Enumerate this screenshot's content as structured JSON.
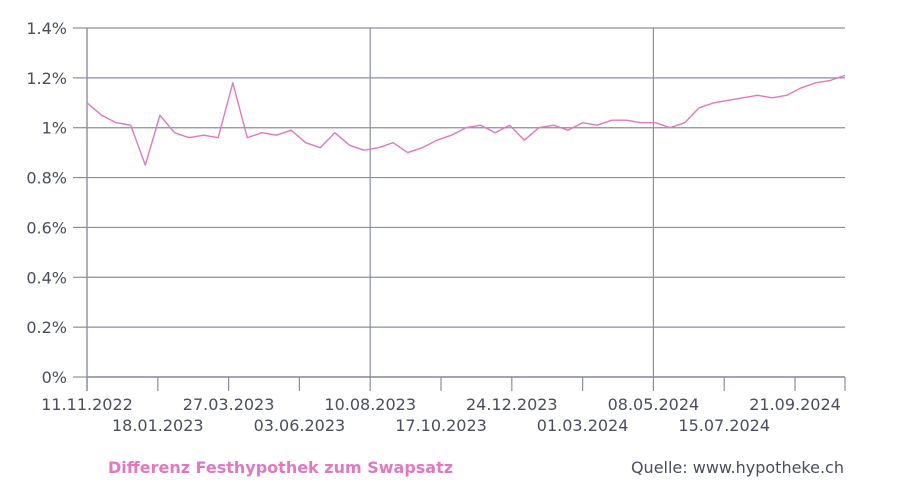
{
  "chart_data": {
    "type": "line",
    "ylim": [
      0,
      1.4
    ],
    "y_ticks": [
      "0%",
      "0.2%",
      "0.4%",
      "0.6%",
      "0.8%",
      "1%",
      "1.2%",
      "1.4%"
    ],
    "y_tick_values": [
      0,
      0.2,
      0.4,
      0.6,
      0.8,
      1.0,
      1.2,
      1.4
    ],
    "x_ticks_row1": [
      "11.11.2022",
      "27.03.2023",
      "10.08.2023",
      "24.12.2023",
      "08.05.2024",
      "21.09.2024"
    ],
    "x_ticks_row2": [
      "18.01.2023",
      "03.06.2023",
      "17.10.2023",
      "01.03.2024",
      "15.07.2024"
    ],
    "grid": true,
    "series": [
      {
        "name": "Differenz Festhypothek zum Swapsatz",
        "color": "#e377c2",
        "x": [
          "2022-11-11",
          "2022-11-25",
          "2022-12-09",
          "2022-12-23",
          "2023-01-06",
          "2023-01-20",
          "2023-02-03",
          "2023-02-17",
          "2023-03-03",
          "2023-03-17",
          "2023-03-31",
          "2023-04-14",
          "2023-04-28",
          "2023-05-12",
          "2023-05-26",
          "2023-06-09",
          "2023-06-23",
          "2023-07-07",
          "2023-07-21",
          "2023-08-04",
          "2023-08-18",
          "2023-09-01",
          "2023-09-15",
          "2023-09-29",
          "2023-10-13",
          "2023-10-27",
          "2023-11-10",
          "2023-11-24",
          "2023-12-08",
          "2023-12-22",
          "2024-01-05",
          "2024-01-19",
          "2024-02-02",
          "2024-02-16",
          "2024-03-01",
          "2024-03-15",
          "2024-03-29",
          "2024-04-12",
          "2024-04-26",
          "2024-05-10",
          "2024-05-24",
          "2024-06-07",
          "2024-06-21",
          "2024-07-05",
          "2024-07-19",
          "2024-08-02",
          "2024-08-16",
          "2024-08-30",
          "2024-09-13",
          "2024-09-27",
          "2024-10-11",
          "2024-10-25",
          "2024-11-08"
        ],
        "values": [
          1.1,
          1.05,
          1.02,
          1.01,
          0.85,
          1.05,
          0.98,
          0.96,
          0.97,
          0.96,
          1.18,
          0.96,
          0.98,
          0.97,
          0.99,
          0.94,
          0.92,
          0.98,
          0.93,
          0.91,
          0.92,
          0.94,
          0.9,
          0.92,
          0.95,
          0.97,
          1.0,
          1.01,
          0.98,
          1.01,
          0.95,
          1.0,
          1.01,
          0.99,
          1.02,
          1.01,
          1.03,
          1.03,
          1.02,
          1.02,
          1.0,
          1.02,
          1.08,
          1.1,
          1.11,
          1.12,
          1.13,
          1.12,
          1.13,
          1.16,
          1.18,
          1.19,
          1.21
        ]
      }
    ]
  },
  "legend_text": "Differenz Festhypothek zum Swapsatz",
  "source_text": "Quelle: www.hypotheke.ch",
  "colors": {
    "series": "#e377c2",
    "grid": "#8b8ea3",
    "text": "#4a4d5e"
  }
}
